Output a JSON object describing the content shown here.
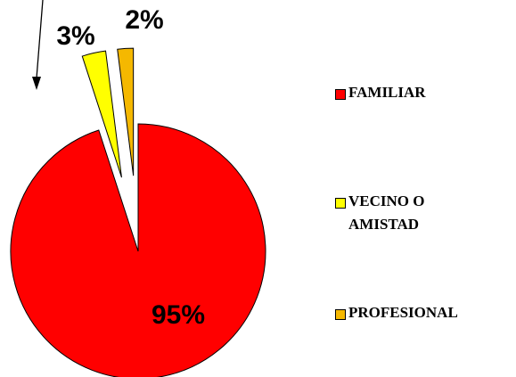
{
  "chart_data": {
    "type": "pie",
    "categories": [
      "FAMILIAR",
      "VECINO O AMISTAD",
      "PROFESIONAL"
    ],
    "values": [
      95,
      3,
      2
    ],
    "value_labels": [
      "95%",
      "3%",
      "2%"
    ],
    "colors": [
      "#ff0000",
      "#ffff00",
      "#f5b800"
    ],
    "legend": "right"
  }
}
